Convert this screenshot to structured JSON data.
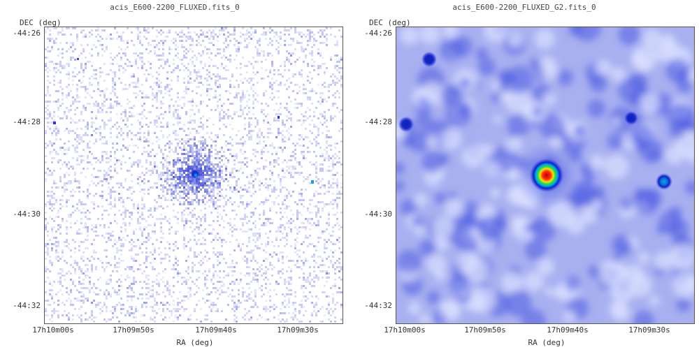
{
  "panels": [
    {
      "title": "acis_E600-2200_FLUXED.fits_0",
      "ylabel": "DEC (deg)",
      "xlabel": "RA (deg)",
      "yticks": [
        "-44:26",
        "-44:28",
        "-44:30",
        "-44:32"
      ],
      "xticks": [
        "17h10m00s",
        "17h09m50s",
        "17h09m40s",
        "17h09m30s"
      ],
      "image": "raw-counts"
    },
    {
      "title": "acis_E600-2200_FLUXED_G2.fits_0",
      "ylabel": "DEC (deg)",
      "xlabel": "RA (deg)",
      "yticks": [
        "-44:26",
        "-44:28",
        "-44:30",
        "-44:32"
      ],
      "xticks": [
        "17h10m00s",
        "17h09m50s",
        "17h09m40s",
        "17h09m30s"
      ],
      "image": "smoothed"
    }
  ],
  "colors": {
    "background_raw": "#ffffff",
    "background_smooth": "#a8b0f0",
    "source_blue": "#1e2fd8",
    "source_hot": "#e01010"
  }
}
